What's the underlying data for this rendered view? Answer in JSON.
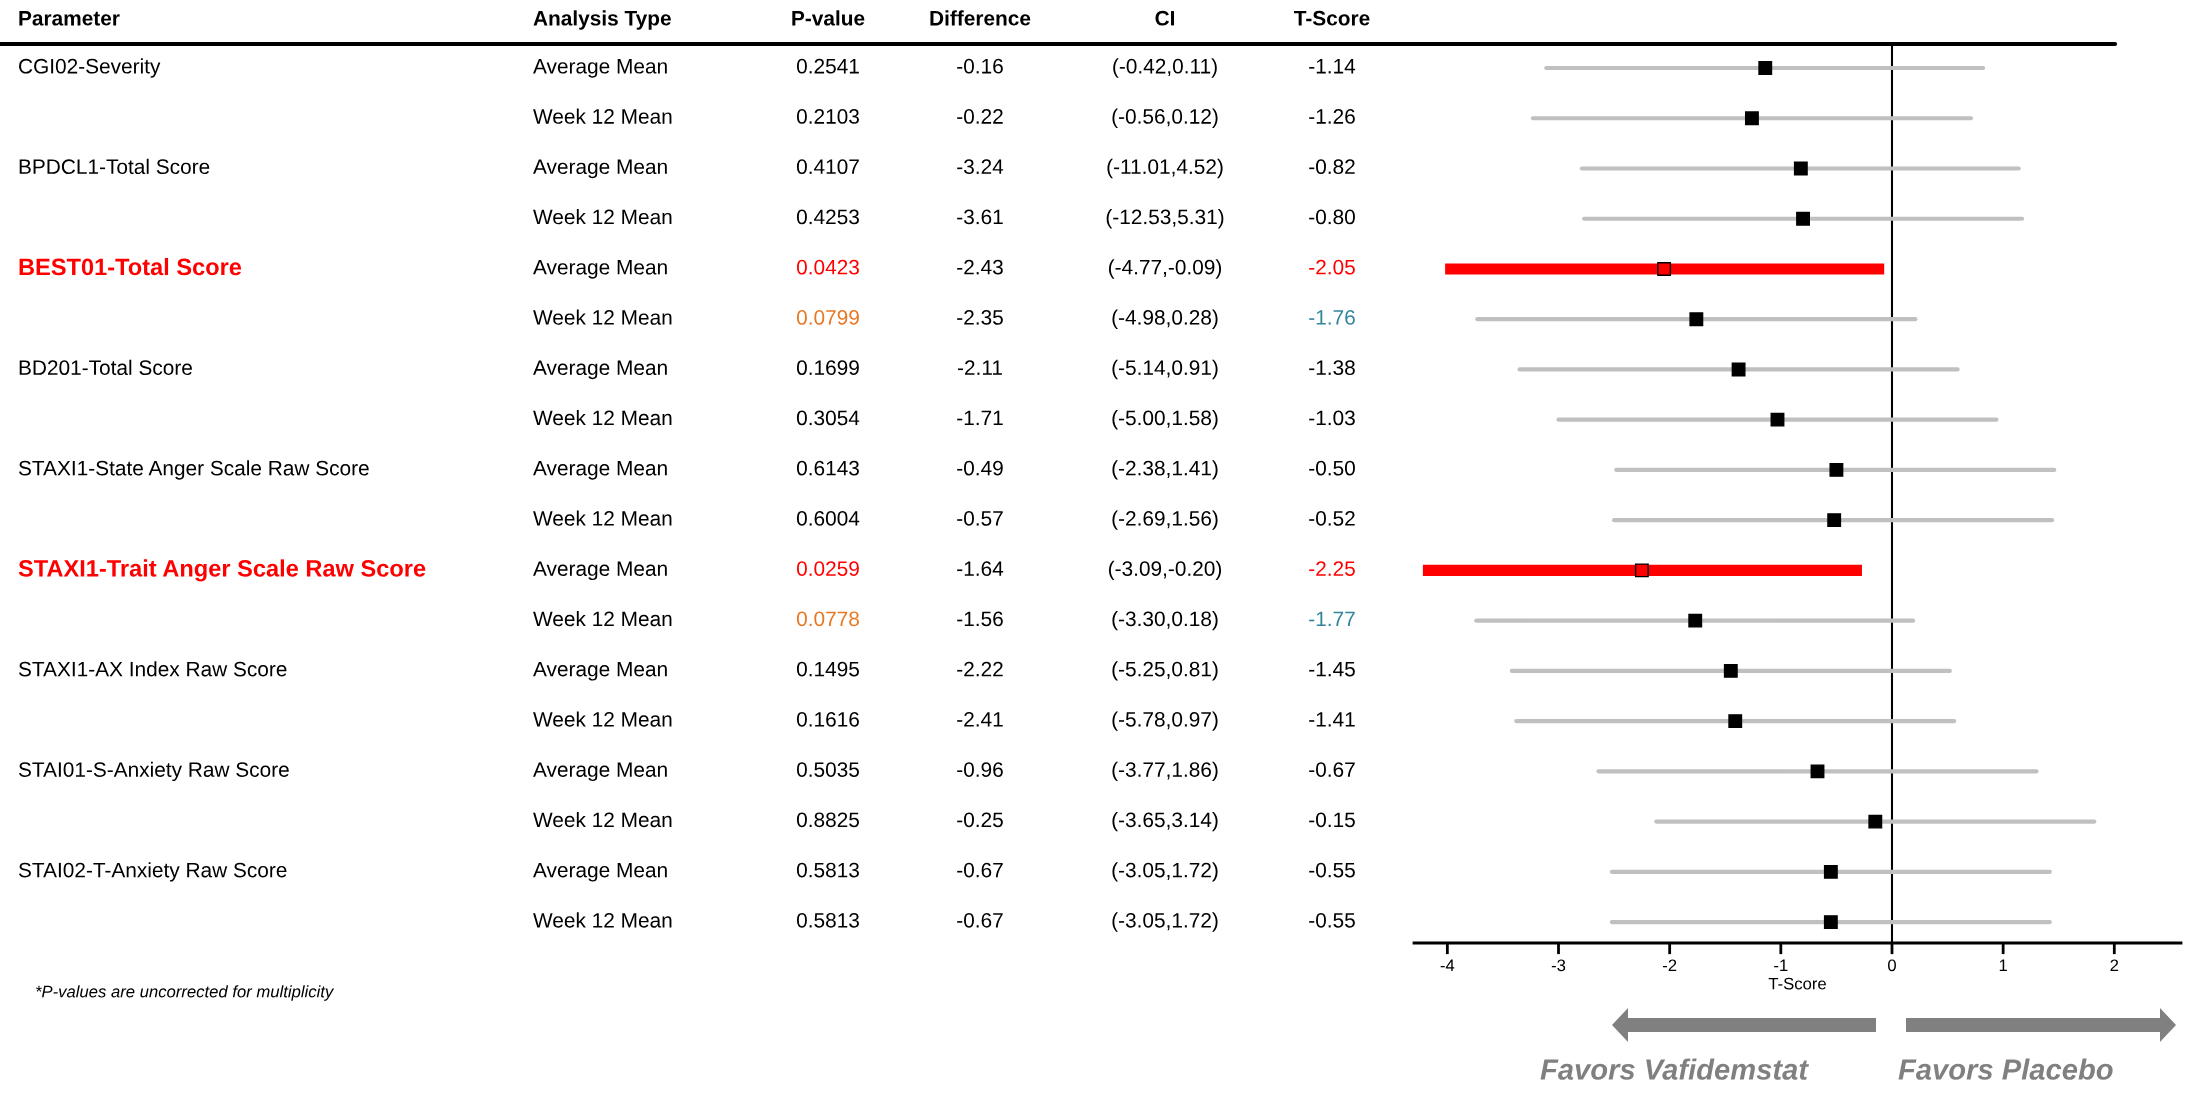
{
  "chart_data": [
    {
      "type": "other",
      "categories": [
        "Parameter",
        "Analysis Type",
        "P-value",
        "Difference",
        "CI",
        "T-Score"
      ],
      "cells": [
        [
          "CGI02-Severity",
          "Average Mean",
          "0.2541",
          "-0.16",
          "(-0.42,0.11)",
          "-1.14"
        ],
        [
          null,
          "Week 12 Mean",
          "0.2103",
          "-0.22",
          "(-0.56,0.12)",
          "-1.26"
        ],
        [
          "BPDCL1-Total Score",
          "Average Mean",
          "0.4107",
          "-3.24",
          "(-11.01,4.52)",
          "-0.82"
        ],
        [
          null,
          "Week 12 Mean",
          "0.4253",
          "-3.61",
          "(-12.53,5.31)",
          "-0.80"
        ],
        [
          "BEST01-Total Score",
          "Average Mean",
          "0.0423",
          "-2.43",
          "(-4.77,-0.09)",
          "-2.05"
        ],
        [
          null,
          "Week 12 Mean",
          "0.0799",
          "-2.35",
          "(-4.98,0.28)",
          "-1.76"
        ],
        [
          "BD201-Total Score",
          "Average Mean",
          "0.1699",
          "-2.11",
          "(-5.14,0.91)",
          "-1.38"
        ],
        [
          null,
          "Week 12 Mean",
          "0.3054",
          "-1.71",
          "(-5.00,1.58)",
          "-1.03"
        ],
        [
          "STAXI1-State Anger Scale Raw Score",
          "Average Mean",
          "0.6143",
          "-0.49",
          "(-2.38,1.41)",
          "-0.50"
        ],
        [
          null,
          "Week 12 Mean",
          "0.6004",
          "-0.57",
          "(-2.69,1.56)",
          "-0.52"
        ],
        [
          "STAXI1-Trait Anger Scale Raw Score",
          "Average Mean",
          "0.0259",
          "-1.64",
          "(-3.09,-0.20)",
          "-2.25"
        ],
        [
          null,
          "Week 12 Mean",
          "0.0778",
          "-1.56",
          "(-3.30,0.18)",
          "-1.77"
        ],
        [
          "STAXI1-AX Index Raw Score",
          "Average Mean",
          "0.1495",
          "-2.22",
          "(-5.25,0.81)",
          "-1.45"
        ],
        [
          null,
          "Week 12 Mean",
          "0.1616",
          "-2.41",
          "(-5.78,0.97)",
          "-1.41"
        ],
        [
          "STAI01-S-Anxiety Raw Score",
          "Average Mean",
          "0.5035",
          "-0.96",
          "(-3.77,1.86)",
          "-0.67"
        ],
        [
          null,
          "Week 12 Mean",
          "0.8825",
          "-0.25",
          "(-3.65,3.14)",
          "-0.15"
        ],
        [
          "STAI02-T-Anxiety Raw Score",
          "Average Mean",
          "0.5813",
          "-0.67",
          "(-3.05,1.72)",
          "-0.55"
        ],
        [
          null,
          "Week 12 Mean",
          "0.5813",
          "-0.67",
          "(-3.05,1.72)",
          "-0.55"
        ]
      ],
      "colors": [
        [
          "#000000",
          "#000000",
          "#000000",
          "#000000",
          "#000000",
          "#000000"
        ],
        [
          "#000000",
          "#000000",
          "#000000",
          "#000000",
          "#000000",
          "#000000"
        ],
        [
          "#000000",
          "#000000",
          "#000000",
          "#000000",
          "#000000",
          "#000000"
        ],
        [
          "#000000",
          "#000000",
          "#000000",
          "#000000",
          "#000000",
          "#000000"
        ],
        [
          "#ff0000",
          "#000000",
          "#ff0000",
          "#000000",
          "#000000",
          "#ff0000"
        ],
        [
          "#000000",
          "#000000",
          "#e87722",
          "#000000",
          "#000000",
          "#31849b"
        ],
        [
          "#000000",
          "#000000",
          "#000000",
          "#000000",
          "#000000",
          "#000000"
        ],
        [
          "#000000",
          "#000000",
          "#000000",
          "#000000",
          "#000000",
          "#000000"
        ],
        [
          "#000000",
          "#000000",
          "#000000",
          "#000000",
          "#000000",
          "#000000"
        ],
        [
          "#000000",
          "#000000",
          "#000000",
          "#000000",
          "#000000",
          "#000000"
        ],
        [
          "#ff0000",
          "#000000",
          "#ff0000",
          "#000000",
          "#000000",
          "#ff0000"
        ],
        [
          "#000000",
          "#000000",
          "#e87722",
          "#000000",
          "#000000",
          "#31849b"
        ],
        [
          "#000000",
          "#000000",
          "#000000",
          "#000000",
          "#000000",
          "#000000"
        ],
        [
          "#000000",
          "#000000",
          "#000000",
          "#000000",
          "#000000",
          "#000000"
        ],
        [
          "#000000",
          "#000000",
          "#000000",
          "#000000",
          "#000000",
          "#000000"
        ],
        [
          "#000000",
          "#000000",
          "#000000",
          "#000000",
          "#000000",
          "#000000"
        ],
        [
          "#000000",
          "#000000",
          "#000000",
          "#000000",
          "#000000",
          "#000000"
        ],
        [
          "#000000",
          "#000000",
          "#000000",
          "#000000",
          "#000000",
          "#000000"
        ]
      ],
      "annotations": [
        "*P-values are uncorrected for multiplicity"
      ]
    },
    {
      "type": "scatter",
      "orientation": "horizontal",
      "marker": "square",
      "categories": [
        null,
        null,
        null,
        null,
        null,
        null,
        null,
        null,
        null,
        null,
        null,
        null,
        null,
        null,
        null,
        null,
        null,
        null
      ],
      "series": [
        {
          "color": "#000000",
          "values": [
            -1.14,
            -1.26,
            -0.82,
            -0.8,
            null,
            -1.76,
            -1.38,
            -1.03,
            -0.5,
            -0.52,
            null,
            -1.77,
            -1.45,
            -1.41,
            -0.67,
            -0.15,
            -0.55,
            -0.55
          ],
          "errors": [
            [
              -3.11,
              0.82
            ],
            [
              -3.23,
              0.71
            ],
            [
              -2.79,
              1.14
            ],
            [
              -2.77,
              1.17
            ],
            null,
            [
              -3.73,
              0.21
            ],
            [
              -3.35,
              0.59
            ],
            [
              -3.0,
              0.94
            ],
            [
              -2.48,
              1.46
            ],
            [
              -2.5,
              1.44
            ],
            null,
            [
              -3.74,
              0.19
            ],
            [
              -3.42,
              0.52
            ],
            [
              -3.38,
              0.56
            ],
            [
              -2.64,
              1.3
            ],
            [
              -2.12,
              1.82
            ],
            [
              -2.52,
              1.42
            ],
            [
              -2.52,
              1.42
            ]
          ]
        },
        {
          "color": "#ff0000",
          "values": [
            null,
            null,
            null,
            null,
            -2.05,
            null,
            null,
            null,
            null,
            null,
            -2.25,
            null,
            null,
            null,
            null,
            null,
            null,
            null
          ],
          "errors": [
            null,
            null,
            null,
            null,
            [
              -4.02,
              -0.07
            ],
            null,
            null,
            null,
            null,
            null,
            [
              -4.22,
              -0.27
            ],
            null,
            null,
            null,
            null,
            null,
            null,
            null
          ]
        }
      ],
      "xlim": [
        -4.3,
        2.6
      ],
      "xticks": [
        -4,
        -3,
        -2,
        -1,
        0,
        1,
        2
      ],
      "xlabel": "T-Score",
      "ref_lines": [
        {
          "axis": "x",
          "value": 0,
          "color": "#000000"
        }
      ],
      "grid": false,
      "legend": false,
      "annotations": [
        "Favors Vafidemstat",
        "Favors Placebo"
      ]
    }
  ]
}
